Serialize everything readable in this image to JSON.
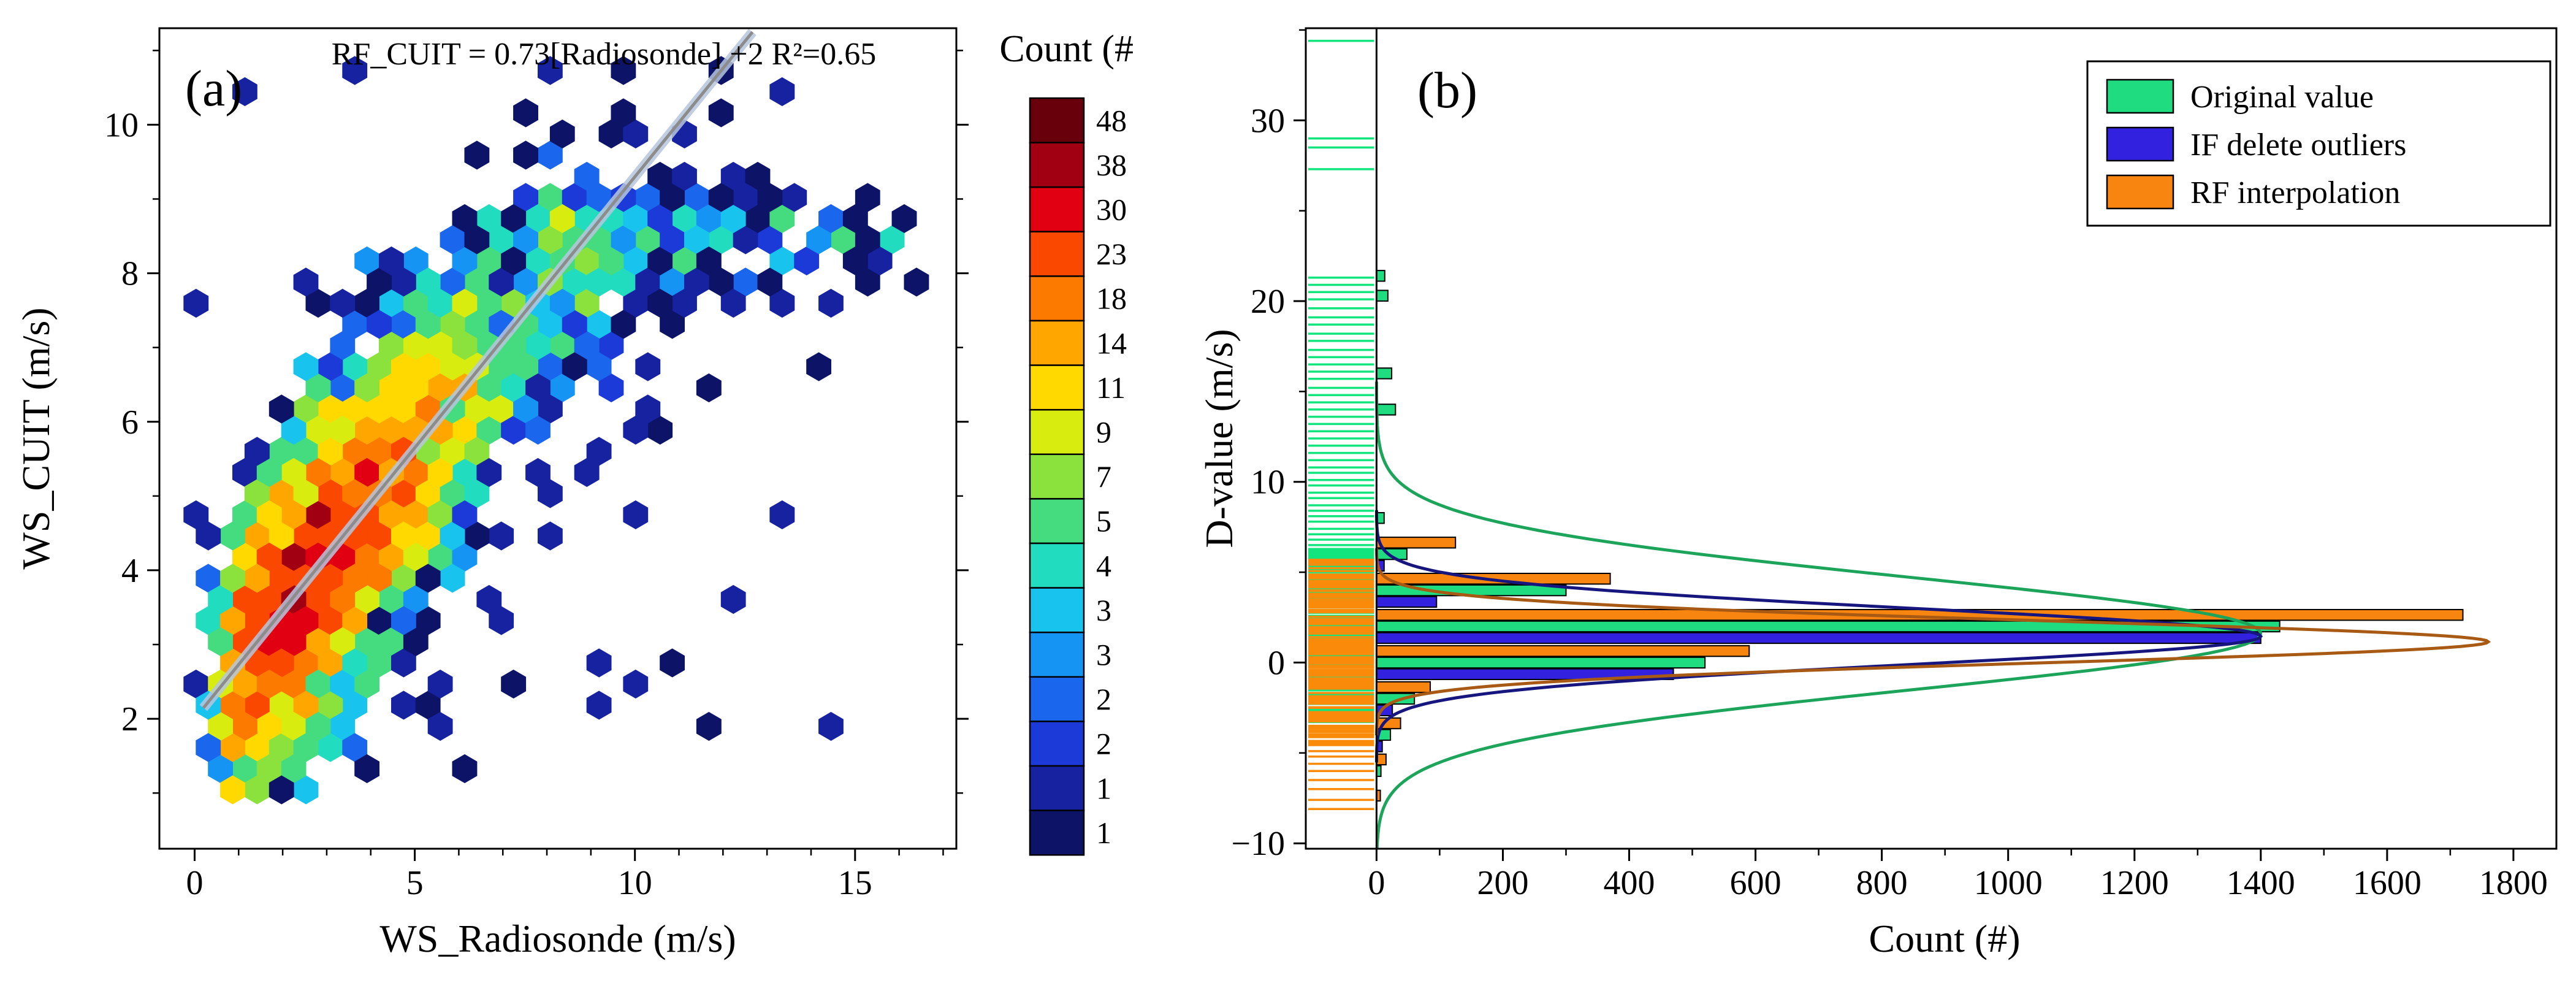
{
  "figure": {
    "background": "#FFFFFF"
  },
  "chart_data": [
    {
      "type": "hexbin",
      "panel_label": "(a)",
      "annotation": "RF_CUIT = 0.73[Radiosonde] +2  R²=0.65",
      "xlabel": "WS_Radiosonde (m/s)",
      "ylabel": "WS_CUIT (m/s)",
      "xlim": [
        -0.8,
        17.3
      ],
      "ylim": [
        0.25,
        11.3
      ],
      "xticks": [
        0,
        5,
        10,
        15
      ],
      "yticks": [
        2,
        4,
        6,
        8,
        10
      ],
      "minor_x_step": 1,
      "minor_y_step": 1,
      "fit_line": {
        "equation": "RF_CUIT = 0.73[Radiosonde] +2",
        "slope": 0.73,
        "intercept": 2,
        "r_squared": 0.65,
        "x_range": [
          0.2,
          12.67
        ],
        "line_color": "#8C8C8C",
        "band_color": "#B7C6DE"
      },
      "colorbar": {
        "title": "Count (#)",
        "labels": [
          "48",
          "38",
          "30",
          "23",
          "18",
          "14",
          "11",
          "9",
          "7",
          "5",
          "4",
          "3",
          "3",
          "2",
          "2",
          "1",
          "1"
        ],
        "levels": [
          48,
          38,
          30,
          23,
          18,
          14,
          11,
          9,
          7,
          5,
          4,
          3,
          3,
          2,
          2,
          1,
          1
        ],
        "colors": [
          "#67000A",
          "#A00011",
          "#E00012",
          "#FA4800",
          "#FC7A00",
          "#FFA600",
          "#FFD900",
          "#D8EC10",
          "#8CE23C",
          "#44DC7E",
          "#22DCC0",
          "#18C4EE",
          "#1694F4",
          "#1A66EC",
          "#1C3AD8",
          "#1722A0",
          "#0D1468"
        ]
      },
      "point_cloud_model": {
        "seed": 1337,
        "n_core": 2600,
        "x_gamma_shape": 3,
        "x_gamma_rate": 0.85,
        "noise_sigma": 1.05,
        "saturation_x": 8,
        "saturation_slope": 0.06,
        "arm_n": 130,
        "arm_y_mean": 8.4,
        "arm_y_sigma": 0.45,
        "outlier_n": 45,
        "x_max": 16.4,
        "y_min": 1.0,
        "y_max": 11.15,
        "hex_radius_px": 23
      }
    },
    {
      "type": "bar",
      "orientation": "horizontal",
      "panel_label": "(b)",
      "xlabel": "Count (#)",
      "ylabel": "D-value (m/s)",
      "xlim": [
        -112,
        1868
      ],
      "ylim": [
        -10.3,
        35.1
      ],
      "xticks": [
        0,
        200,
        400,
        600,
        800,
        1000,
        1200,
        1400,
        1600,
        1800
      ],
      "yticks": [
        -10,
        0,
        10,
        20,
        30
      ],
      "minor_x_step": 100,
      "minor_y_step": 5,
      "bin_width": 2,
      "bar_thickness": 0.64,
      "series": [
        {
          "name": "Original value",
          "key": "original",
          "color": "#1FDC81"
        },
        {
          "name": "IF delete outliers",
          "key": "if_outliers",
          "color": "#3222E0"
        },
        {
          "name": "RF interpolation",
          "key": "rf_interp",
          "color": "#F8850F"
        }
      ],
      "stack_order_top_to_bottom": [
        "rf_interp",
        "original",
        "if_outliers"
      ],
      "bins": [
        {
          "center": -8,
          "original": 0,
          "if_outliers": 0,
          "rf_interp": 6
        },
        {
          "center": -6,
          "original": 7,
          "if_outliers": 0,
          "rf_interp": 15
        },
        {
          "center": -4,
          "original": 22,
          "if_outliers": 9,
          "rf_interp": 38
        },
        {
          "center": -2,
          "original": 60,
          "if_outliers": 25,
          "rf_interp": 85
        },
        {
          "center": 0,
          "original": 520,
          "if_outliers": 470,
          "rf_interp": 590
        },
        {
          "center": 2,
          "original": 1430,
          "if_outliers": 1400,
          "rf_interp": 1720
        },
        {
          "center": 4,
          "original": 300,
          "if_outliers": 95,
          "rf_interp": 370
        },
        {
          "center": 6,
          "original": 48,
          "if_outliers": 12,
          "rf_interp": 125
        },
        {
          "center": 8,
          "original": 12,
          "if_outliers": 0,
          "rf_interp": 0
        },
        {
          "center": 14,
          "original": 30,
          "if_outliers": 0,
          "rf_interp": 0
        },
        {
          "center": 16,
          "original": 24,
          "if_outliers": 0,
          "rf_interp": 0
        },
        {
          "center": 20.3,
          "original": 18,
          "if_outliers": 0,
          "rf_interp": 0
        },
        {
          "center": 21.4,
          "original": 13,
          "if_outliers": 0,
          "rf_interp": 0
        }
      ],
      "fit_curves": [
        {
          "series": "Original value",
          "color": "#1CA55A",
          "amplitude": 1400,
          "mean": 1.6,
          "sigma": 3.1
        },
        {
          "series": "IF delete outliers",
          "color": "#16167E",
          "amplitude": 1400,
          "mean": 1.45,
          "sigma": 1.55
        },
        {
          "series": "RF interpolation",
          "color": "#A85A14",
          "amplitude": 1760,
          "mean": 1.15,
          "sigma": 1.15
        }
      ],
      "legend": {
        "entries": [
          {
            "label": "Original value",
            "color": "#1FDC81"
          },
          {
            "label": "IF delete outliers",
            "color": "#3222E0"
          },
          {
            "label": "RF interpolation",
            "color": "#F8850F"
          }
        ]
      },
      "rug": {
        "seed": 99,
        "green": {
          "color": "#12E57E",
          "dense_range": [
            -3.3,
            6.3
          ],
          "dense_count": 150,
          "sparse": [
            34.4,
            29.0,
            28.5,
            27.3,
            21.3,
            20.9,
            20.5,
            20.1,
            19.6,
            19.1,
            18.7,
            18.2,
            17.8,
            17.3,
            16.9,
            16.5,
            16.1,
            15.7,
            15.2,
            14.8,
            14.4,
            14.0,
            13.6,
            13.2,
            12.8,
            12.4,
            12.0,
            11.6,
            11.2,
            10.8,
            10.5,
            10.1,
            9.8,
            9.4,
            9.1,
            8.7,
            8.4,
            8.1,
            7.8,
            7.4,
            7.1,
            6.8,
            6.5
          ]
        },
        "orange": {
          "color": "#FA8A0A",
          "dense_range": [
            -4.6,
            5.7
          ],
          "dense_count": 170,
          "sparse": [
            -4.9,
            -5.2,
            -5.6,
            -6.0,
            -6.5,
            -7.0,
            -7.6,
            -8.1
          ]
        }
      }
    }
  ]
}
